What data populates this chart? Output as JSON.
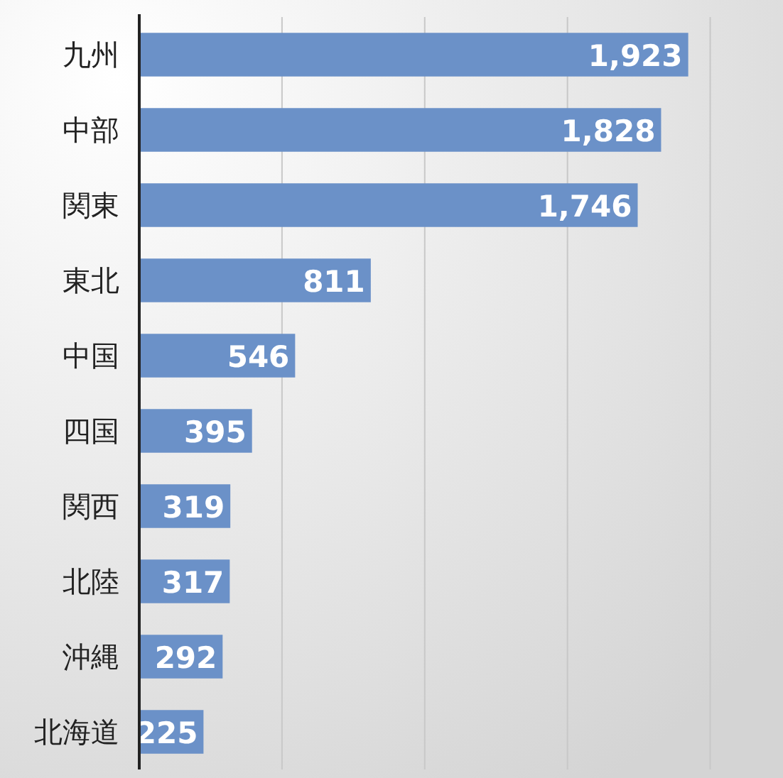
{
  "chart_data": {
    "type": "bar",
    "orientation": "horizontal",
    "categories": [
      "九州",
      "中部",
      "関東",
      "東北",
      "中国",
      "四国",
      "関西",
      "北陸",
      "沖縄",
      "北海道"
    ],
    "values": [
      1923,
      1828,
      1746,
      811,
      546,
      395,
      319,
      317,
      292,
      225
    ],
    "color": "#6b91c8",
    "value_labels": [
      "1,923",
      "1,828",
      "1,746",
      "811",
      "546",
      "395",
      "319",
      "317",
      "292",
      "225"
    ],
    "xlim": [
      0,
      2250
    ],
    "xticks": [
      {
        "value": 0,
        "label": null
      },
      {
        "value": 500,
        "label": null
      },
      {
        "value": 1000,
        "label": null
      },
      {
        "value": 1500,
        "label": null
      },
      {
        "value": 2000,
        "label": null
      }
    ],
    "tick_labels": "y",
    "grid": "x"
  }
}
